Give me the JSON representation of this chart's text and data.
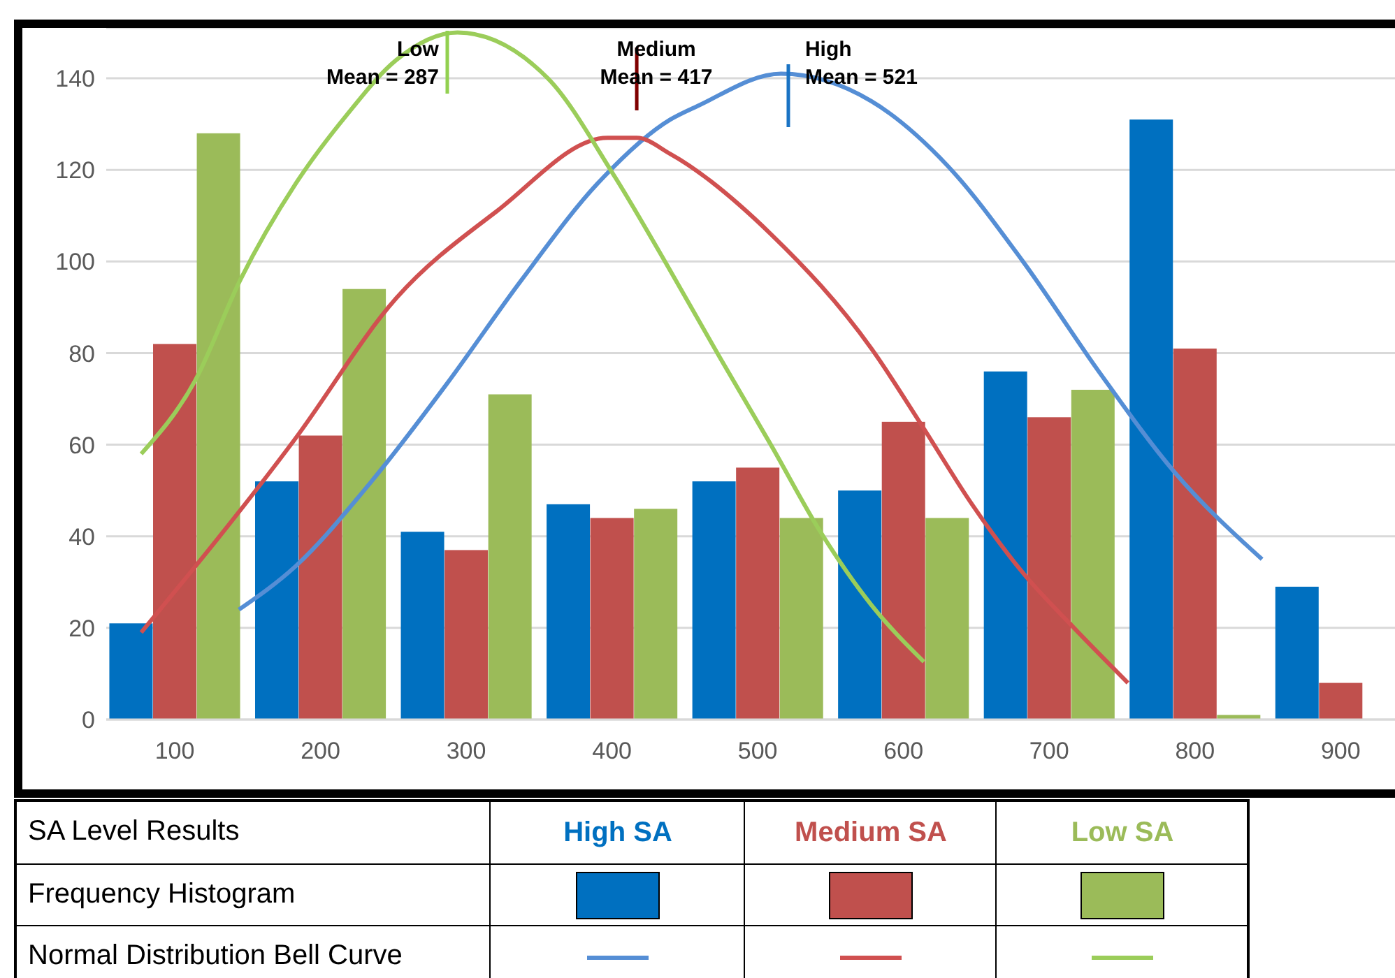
{
  "chart_data": {
    "type": "bar",
    "x": [
      100,
      200,
      300,
      400,
      500,
      600,
      700,
      800,
      900
    ],
    "xlim": [
      53,
      943
    ],
    "xticks": [
      100,
      200,
      300,
      400,
      500,
      600,
      700,
      800,
      900
    ],
    "ylim": [
      0,
      151
    ],
    "yticks": [
      0,
      20,
      40,
      60,
      80,
      100,
      120,
      140
    ],
    "grid": "y",
    "legend": "bottom",
    "legend_title": "SA Level Results",
    "marker": "none",
    "line_style": "solid",
    "annotations": [
      "Frequency Histogram",
      "Normal Distribution Bell Curve"
    ],
    "ref_lines": [
      {
        "axis": "x",
        "value": 287,
        "label": "Low\nMean = 287",
        "color": "#92d050"
      },
      {
        "axis": "x",
        "value": 417,
        "label": "Medium\nMean = 417",
        "color": "#7f0000"
      },
      {
        "axis": "x",
        "value": 521,
        "label": "High\nMean = 521",
        "color": "#1a73c4"
      }
    ],
    "series": [
      {
        "name": "High SA",
        "color": "#0070c0",
        "values": [
          21,
          52,
          41,
          47,
          52,
          50,
          76,
          131,
          29
        ]
      },
      {
        "name": "Medium SA",
        "color": "#c0504d",
        "values": [
          82,
          62,
          37,
          44,
          55,
          65,
          66,
          81,
          8
        ]
      },
      {
        "name": "Low SA",
        "color": "#9bbb59",
        "values": [
          128,
          94,
          71,
          46,
          44,
          44,
          72,
          1,
          0
        ]
      },
      {
        "type": "line",
        "color": "#558ed5",
        "x": [
          144,
          183,
          235,
          286,
          338,
          390,
          440,
          459,
          516,
          578,
          630,
          682,
          734,
          786,
          846
        ],
        "values": [
          24,
          33.5,
          52,
          73,
          96,
          117,
          131,
          134,
          141,
          135,
          121,
          100,
          76,
          54,
          35
        ]
      },
      {
        "type": "line",
        "color": "#d05050",
        "x": [
          77,
          182,
          252,
          321,
          397,
          417,
          440,
          509,
          578,
          613,
          647,
          682,
          717,
          754
        ],
        "values": [
          19,
          61,
          92,
          111,
          127,
          127,
          123.5,
          106,
          81,
          64,
          47,
          32,
          20,
          8
        ]
      },
      {
        "type": "line",
        "color": "#9bcd5a",
        "x": [
          77,
          114,
          145,
          183,
          218,
          252,
          294,
          356,
          401,
          440,
          475,
          509,
          543,
          578,
          614
        ],
        "values": [
          58,
          74,
          96,
          117,
          132,
          144,
          150,
          140,
          119,
          98,
          78.5,
          60,
          41,
          25,
          12.6
        ]
      }
    ]
  }
}
